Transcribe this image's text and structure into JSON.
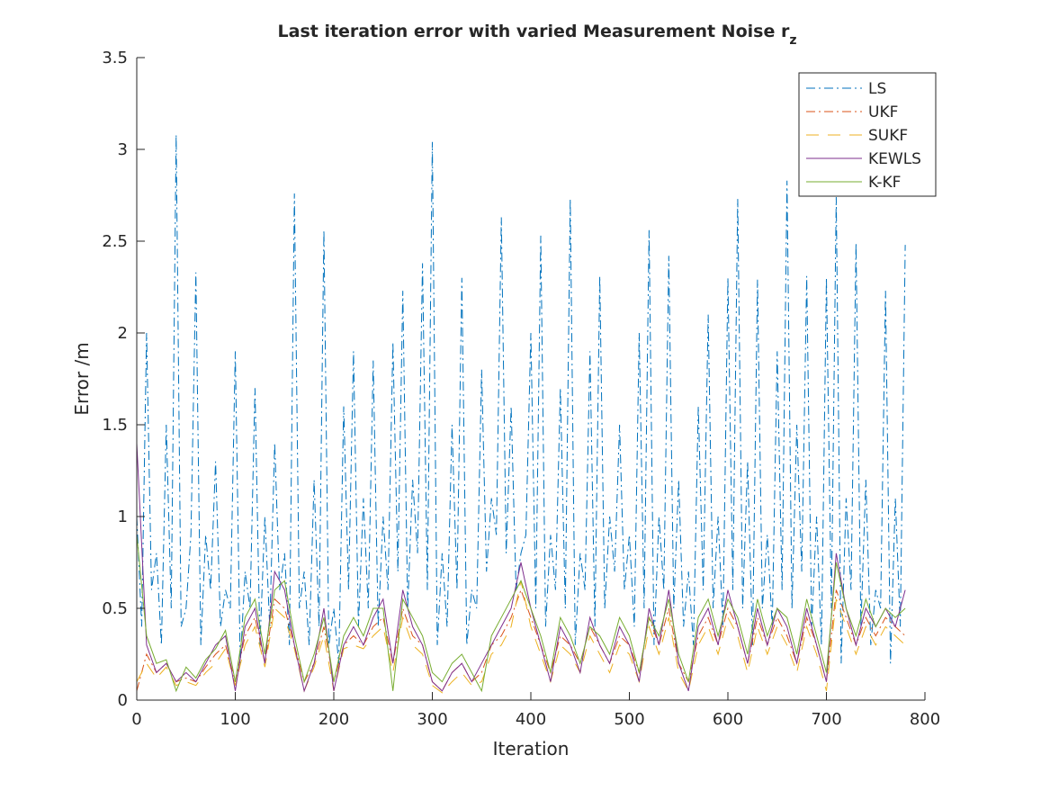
{
  "chart_data": {
    "type": "line",
    "title": "Last iteration error with varied Measurement Noise r",
    "title_subscript": "z",
    "xlabel": "Iteration",
    "ylabel": "Error /m",
    "xlim": [
      0,
      800
    ],
    "ylim": [
      0,
      3.5
    ],
    "xticks": [
      "0",
      "100",
      "200",
      "300",
      "400",
      "500",
      "600",
      "700",
      "800"
    ],
    "yticks": [
      "0",
      "0.5",
      "1",
      "1.5",
      "2",
      "2.5",
      "3",
      "3.5"
    ],
    "grid": false,
    "legend_position": "top-right",
    "series": [
      {
        "name": "LS",
        "color": "#0072BD",
        "dash": "10 4 2 4",
        "x_step": 5,
        "values": [
          1.0,
          0.4,
          2.0,
          0.6,
          0.8,
          0.3,
          1.5,
          0.5,
          3.08,
          0.4,
          0.5,
          0.9,
          2.33,
          0.3,
          0.9,
          0.6,
          1.3,
          0.4,
          0.6,
          0.5,
          1.9,
          0.2,
          0.7,
          0.5,
          1.7,
          0.3,
          1.0,
          0.4,
          1.4,
          0.6,
          0.8,
          0.3,
          2.76,
          0.5,
          0.7,
          0.3,
          1.2,
          0.4,
          2.56,
          0.3,
          0.5,
          0.2,
          1.6,
          0.6,
          1.9,
          0.4,
          1.1,
          0.5,
          1.85,
          0.4,
          1.0,
          0.6,
          1.95,
          0.7,
          2.23,
          0.5,
          1.2,
          0.8,
          2.38,
          0.6,
          3.04,
          0.3,
          0.8,
          0.4,
          1.5,
          0.6,
          2.3,
          0.3,
          0.6,
          0.5,
          1.8,
          0.7,
          1.1,
          0.9,
          2.63,
          0.8,
          1.6,
          0.6,
          0.8,
          0.9,
          2.0,
          0.5,
          2.53,
          0.4,
          0.9,
          0.6,
          1.7,
          0.5,
          2.73,
          0.3,
          0.8,
          0.6,
          1.9,
          0.4,
          2.31,
          0.5,
          1.0,
          0.7,
          1.5,
          0.6,
          0.9,
          0.4,
          2.0,
          0.5,
          2.56,
          0.3,
          1.0,
          0.6,
          2.42,
          0.5,
          1.2,
          0.4,
          0.7,
          0.3,
          1.6,
          0.6,
          2.1,
          0.5,
          1.0,
          0.4,
          2.3,
          0.6,
          2.73,
          0.5,
          1.3,
          0.3,
          2.29,
          0.5,
          0.9,
          0.4,
          1.9,
          0.6,
          2.83,
          0.5,
          1.5,
          0.7,
          2.31,
          0.4,
          1.0,
          0.3,
          2.3,
          0.5,
          2.74,
          0.2,
          1.1,
          0.6,
          2.49,
          0.4,
          1.2,
          0.3,
          0.6,
          0.5,
          2.23,
          0.2,
          1.1,
          0.4,
          2.48
        ]
      },
      {
        "name": "UKF",
        "color": "#D95319",
        "dash": "10 4 2 4",
        "x_step": 10,
        "values": [
          0.05,
          0.25,
          0.15,
          0.2,
          0.1,
          0.12,
          0.1,
          0.18,
          0.25,
          0.3,
          0.1,
          0.35,
          0.45,
          0.2,
          0.55,
          0.5,
          0.3,
          0.1,
          0.2,
          0.4,
          0.1,
          0.3,
          0.35,
          0.3,
          0.4,
          0.45,
          0.2,
          0.5,
          0.35,
          0.3,
          0.1,
          0.05,
          0.15,
          0.2,
          0.1,
          0.15,
          0.3,
          0.35,
          0.45,
          0.6,
          0.45,
          0.3,
          0.15,
          0.35,
          0.3,
          0.2,
          0.4,
          0.3,
          0.2,
          0.35,
          0.3,
          0.15,
          0.45,
          0.3,
          0.5,
          0.2,
          0.1,
          0.35,
          0.45,
          0.3,
          0.5,
          0.4,
          0.2,
          0.45,
          0.3,
          0.45,
          0.35,
          0.2,
          0.45,
          0.3,
          0.1,
          0.6,
          0.45,
          0.3,
          0.45,
          0.35,
          0.45,
          0.4,
          0.35
        ]
      },
      {
        "name": "SUKF",
        "color": "#EDB120",
        "dash": "14 10",
        "x_step": 10,
        "values": [
          0.1,
          0.2,
          0.12,
          0.18,
          0.08,
          0.1,
          0.08,
          0.15,
          0.2,
          0.28,
          0.08,
          0.3,
          0.4,
          0.18,
          0.5,
          0.45,
          0.28,
          0.05,
          0.18,
          0.35,
          0.05,
          0.28,
          0.3,
          0.28,
          0.35,
          0.4,
          0.15,
          0.45,
          0.3,
          0.25,
          0.08,
          0.04,
          0.1,
          0.15,
          0.08,
          0.1,
          0.25,
          0.3,
          0.4,
          0.65,
          0.4,
          0.25,
          0.1,
          0.3,
          0.25,
          0.15,
          0.35,
          0.25,
          0.15,
          0.3,
          0.25,
          0.1,
          0.4,
          0.25,
          0.45,
          0.15,
          0.05,
          0.3,
          0.4,
          0.25,
          0.45,
          0.35,
          0.15,
          0.4,
          0.25,
          0.4,
          0.3,
          0.15,
          0.4,
          0.25,
          0.05,
          0.55,
          0.4,
          0.25,
          0.4,
          0.3,
          0.4,
          0.35,
          0.3
        ]
      },
      {
        "name": "KEWLS",
        "color": "#7E2F8E",
        "dash": "",
        "x_step": 10,
        "values": [
          1.4,
          0.3,
          0.15,
          0.2,
          0.1,
          0.15,
          0.1,
          0.2,
          0.3,
          0.35,
          0.05,
          0.4,
          0.5,
          0.2,
          0.7,
          0.6,
          0.3,
          0.05,
          0.2,
          0.5,
          0.05,
          0.3,
          0.4,
          0.3,
          0.45,
          0.55,
          0.2,
          0.6,
          0.4,
          0.3,
          0.1,
          0.05,
          0.15,
          0.2,
          0.1,
          0.2,
          0.3,
          0.4,
          0.5,
          0.75,
          0.5,
          0.3,
          0.1,
          0.4,
          0.3,
          0.15,
          0.45,
          0.3,
          0.2,
          0.4,
          0.3,
          0.1,
          0.5,
          0.3,
          0.6,
          0.2,
          0.05,
          0.4,
          0.5,
          0.3,
          0.6,
          0.4,
          0.2,
          0.5,
          0.3,
          0.5,
          0.4,
          0.2,
          0.5,
          0.3,
          0.1,
          0.8,
          0.5,
          0.3,
          0.5,
          0.4,
          0.5,
          0.4,
          0.6
        ]
      },
      {
        "name": "K-KF",
        "color": "#77AC30",
        "dash": "",
        "x_step": 10,
        "values": [
          0.9,
          0.35,
          0.2,
          0.22,
          0.05,
          0.18,
          0.12,
          0.22,
          0.28,
          0.38,
          0.1,
          0.45,
          0.55,
          0.25,
          0.6,
          0.65,
          0.35,
          0.1,
          0.25,
          0.45,
          0.1,
          0.35,
          0.45,
          0.35,
          0.5,
          0.5,
          0.05,
          0.55,
          0.45,
          0.35,
          0.15,
          0.1,
          0.2,
          0.25,
          0.15,
          0.05,
          0.35,
          0.45,
          0.55,
          0.65,
          0.5,
          0.35,
          0.15,
          0.45,
          0.35,
          0.2,
          0.4,
          0.35,
          0.25,
          0.45,
          0.35,
          0.15,
          0.45,
          0.35,
          0.55,
          0.25,
          0.1,
          0.45,
          0.55,
          0.35,
          0.55,
          0.45,
          0.25,
          0.55,
          0.35,
          0.5,
          0.45,
          0.25,
          0.55,
          0.35,
          0.15,
          0.75,
          0.5,
          0.35,
          0.55,
          0.4,
          0.5,
          0.45,
          0.5
        ]
      }
    ]
  }
}
